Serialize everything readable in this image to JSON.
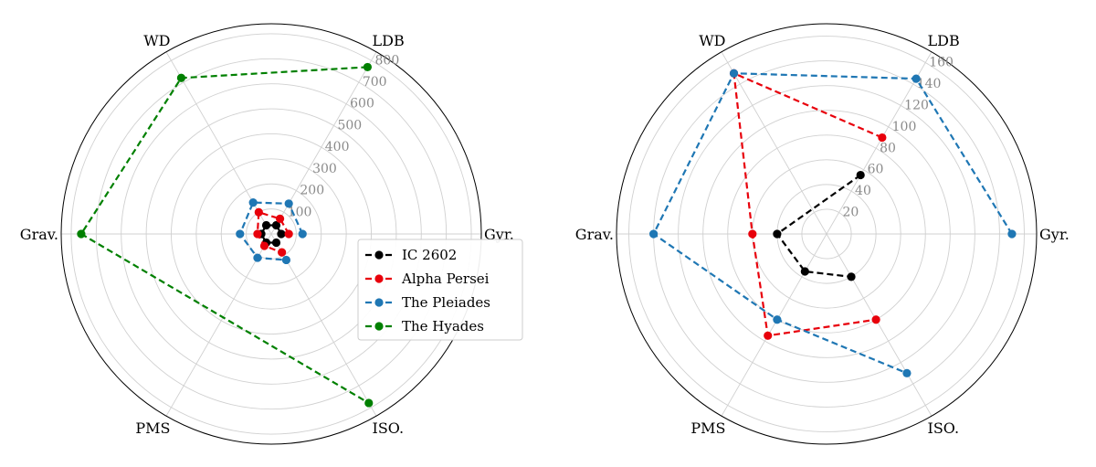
{
  "chart_data": [
    {
      "type": "radar",
      "axes": [
        "Gyr.",
        "LDB",
        "WD",
        "Grav.",
        "PMS",
        "ISO."
      ],
      "r_ticks": [
        100,
        200,
        300,
        400,
        500,
        600,
        700,
        800
      ],
      "r_tick_labels": [
        "100",
        "200",
        "300",
        "400",
        "500",
        "600",
        "700",
        "800"
      ],
      "rlim": [
        0,
        840
      ],
      "grid": true,
      "legend": {
        "placement": "right",
        "entries": [
          "IC 2602",
          "Alpha Persei",
          "The Pleiades",
          "The Hyades"
        ]
      },
      "series": [
        {
          "name": "IC 2602",
          "color": "#000000",
          "values": [
            40,
            40,
            40,
            40,
            40,
            40
          ]
        },
        {
          "name": "Alpha Persei",
          "color": "#e8000b",
          "values": [
            70,
            70,
            100,
            55,
            55,
            85
          ]
        },
        {
          "name": "The Pleiades",
          "color": "#1f77b4",
          "values": [
            125,
            140,
            145,
            125,
            110,
            120
          ]
        },
        {
          "name": "The Hyades",
          "color": "#008000",
          "values": [
            null,
            770,
            720,
            760,
            null,
            780
          ]
        }
      ]
    },
    {
      "type": "radar",
      "axes": [
        "Gyr.",
        "LDB",
        "WD",
        "Grav.",
        "PMS",
        "ISO."
      ],
      "r_ticks": [
        20,
        40,
        60,
        80,
        100,
        120,
        140,
        160
      ],
      "r_tick_labels": [
        "20",
        "40",
        "60",
        "80",
        "100",
        "120",
        "140",
        "160"
      ],
      "rlim": [
        0,
        170
      ],
      "grid": true,
      "series": [
        {
          "name": "IC 2602",
          "color": "#000000",
          "values": [
            null,
            55,
            null,
            40,
            35,
            40
          ]
        },
        {
          "name": "Alpha Persei",
          "color": "#e8000b",
          "values": [
            null,
            90,
            150,
            60,
            95,
            80
          ]
        },
        {
          "name": "The Pleiades",
          "color": "#1f77b4",
          "values": [
            150,
            145,
            150,
            140,
            80,
            130
          ]
        },
        {
          "name": "The Hyades",
          "color": "#008000",
          "values": [
            null,
            null,
            null,
            null,
            null,
            null
          ]
        }
      ]
    }
  ]
}
